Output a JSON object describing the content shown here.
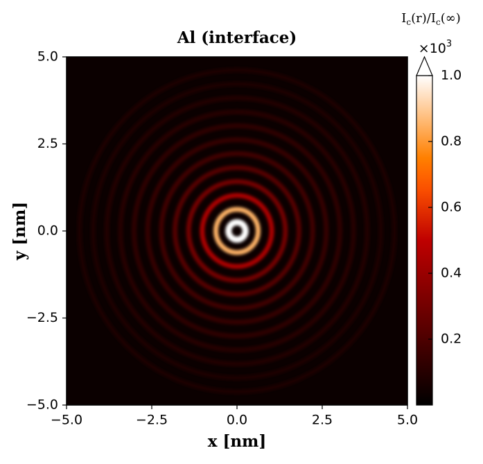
{
  "chart_data": {
    "type": "heatmap",
    "title": "Al (interface)",
    "x_label": "x [nm]",
    "y_label": "y [nm]",
    "xlim": [
      -5,
      5
    ],
    "ylim": [
      -5,
      5
    ],
    "xticks": [
      {
        "value": -5,
        "label": "−5.0"
      },
      {
        "value": -2.5,
        "label": "−2.5"
      },
      {
        "value": 0,
        "label": "0.0"
      },
      2.5,
      {
        "value": 5,
        "label": "5.0"
      }
    ],
    "yticks": [
      {
        "value": -5,
        "label": "−5.0"
      },
      {
        "value": -2.5,
        "label": "−2.5"
      },
      {
        "value": 0,
        "label": "0.0"
      },
      2.5,
      {
        "value": 5,
        "label": "5.0"
      }
    ],
    "colorbar": {
      "label_base": "I",
      "label_sub": "c",
      "label_mid": "(r)/I",
      "label_sub2": "c",
      "label_end": "(∞)",
      "offset_base": "×10",
      "offset_exp": "3",
      "clim": [
        0,
        1.0
      ],
      "ticks": [
        0.2,
        0.4,
        0.6,
        0.8,
        {
          "value": 1.0,
          "label": "1.0"
        }
      ],
      "extend": "max"
    },
    "rings": {
      "r": [
        0.25,
        0.62,
        1.02,
        1.42,
        1.82,
        2.22,
        2.62,
        3.02,
        3.42,
        3.82,
        4.22,
        4.62
      ],
      "values": [
        1.2,
        0.85,
        0.45,
        0.3,
        0.22,
        0.17,
        0.14,
        0.12,
        0.1,
        0.09,
        0.08,
        0.07
      ]
    }
  }
}
